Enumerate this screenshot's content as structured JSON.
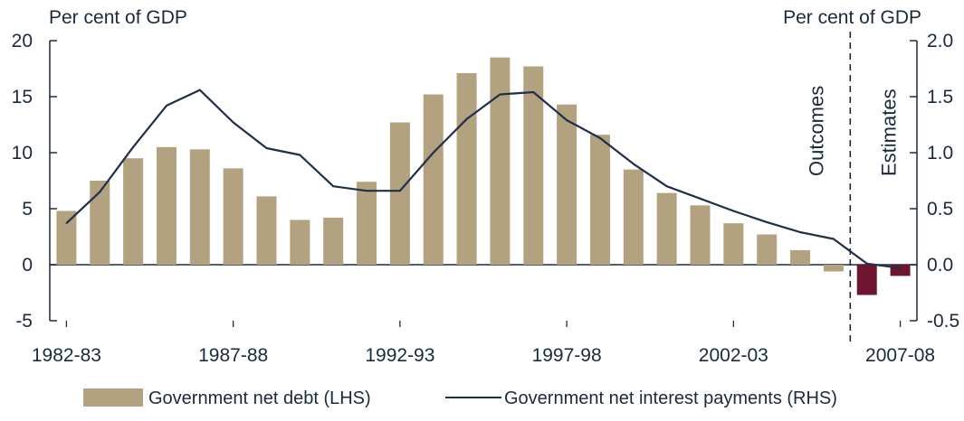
{
  "chart_data": {
    "type": "bar",
    "left_axis": {
      "unit_label": "Per cent of GDP",
      "range": [
        -5,
        20
      ],
      "ticks": [
        "20",
        "15",
        "10",
        "5",
        "0",
        "-5"
      ]
    },
    "right_axis": {
      "unit_label": "Per cent of GDP",
      "range": [
        -0.5,
        2.0
      ],
      "ticks": [
        "2.0",
        "1.5",
        "1.0",
        "0.5",
        "0.0",
        "-0.5"
      ]
    },
    "x_tick_labels": [
      "1982-83",
      "1987-88",
      "1992-93",
      "1997-98",
      "2002-03",
      "2007-08"
    ],
    "x_tick_indices": [
      0,
      5,
      10,
      15,
      20,
      25
    ],
    "categories": [
      "1982-83",
      "1983-84",
      "1984-85",
      "1985-86",
      "1986-87",
      "1987-88",
      "1988-89",
      "1989-90",
      "1990-91",
      "1991-92",
      "1992-93",
      "1993-94",
      "1994-95",
      "1995-96",
      "1996-97",
      "1997-98",
      "1998-99",
      "1999-00",
      "2000-01",
      "2001-02",
      "2002-03",
      "2003-04",
      "2004-05",
      "2005-06",
      "2006-07",
      "2007-08"
    ],
    "series": [
      {
        "name": "Government net debt (LHS)",
        "type": "bar",
        "axis": "left",
        "values": [
          4.8,
          7.5,
          9.5,
          10.5,
          10.3,
          8.6,
          6.1,
          4.0,
          4.2,
          7.4,
          12.7,
          15.2,
          17.1,
          18.5,
          17.7,
          14.3,
          11.6,
          8.5,
          6.4,
          5.3,
          3.7,
          2.7,
          1.3,
          -0.6,
          -2.7,
          -1.0
        ],
        "colors": [
          "#b3a27f",
          "#b3a27f",
          "#b3a27f",
          "#b3a27f",
          "#b3a27f",
          "#b3a27f",
          "#b3a27f",
          "#b3a27f",
          "#b3a27f",
          "#b3a27f",
          "#b3a27f",
          "#b3a27f",
          "#b3a27f",
          "#b3a27f",
          "#b3a27f",
          "#b3a27f",
          "#b3a27f",
          "#b3a27f",
          "#b3a27f",
          "#b3a27f",
          "#b3a27f",
          "#b3a27f",
          "#b3a27f",
          "#b3a27f",
          "#6e1530",
          "#6e1530"
        ]
      },
      {
        "name": "Government net interest payments (RHS)",
        "type": "line",
        "axis": "right",
        "color": "#1f2e4a",
        "values": [
          0.37,
          0.65,
          1.05,
          1.42,
          1.56,
          1.27,
          1.04,
          0.98,
          0.7,
          0.66,
          0.66,
          1.0,
          1.3,
          1.52,
          1.54,
          1.29,
          1.13,
          0.9,
          0.7,
          0.59,
          0.48,
          0.38,
          0.29,
          0.23,
          0.01,
          -0.03
        ]
      }
    ],
    "annotations": {
      "divider_after_index": 23,
      "left_label": "Outcomes",
      "right_label": "Estimates"
    },
    "grid": false,
    "legend_position": "bottom"
  }
}
